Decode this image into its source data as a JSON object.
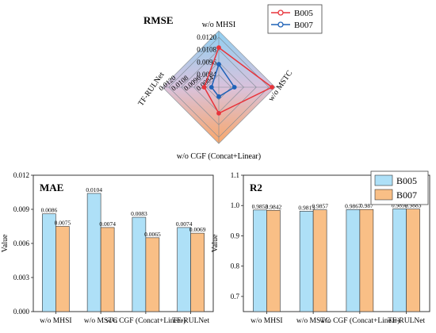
{
  "colors": {
    "b005_line": "#e8343b",
    "b007_line": "#1f62b7",
    "bar_b005": "#aee0f7",
    "bar_b007": "#f9bf86",
    "bar_edge": "#333333"
  },
  "chart_data": [
    {
      "type": "radar",
      "title": "RMSE",
      "axes": [
        "w/o MHSI",
        "w/o MSTC",
        "w/o CGF (Concat+Linear)",
        "TF-RULNet"
      ],
      "tick_labels": [
        "0.0084",
        "0.0096",
        "0.0108",
        "0.0120"
      ],
      "range": [
        0.0072,
        0.0126
      ],
      "legend": "top-right",
      "series": [
        {
          "name": "B005",
          "values": [
            0.011,
            0.0123,
            0.0097,
            0.0086
          ]
        },
        {
          "name": "B007",
          "values": [
            0.0094,
            0.0087,
            0.0081,
            0.0079
          ]
        }
      ]
    },
    {
      "type": "bar",
      "title": "MAE",
      "ylabel": "Value",
      "ylim": [
        0,
        0.012
      ],
      "yticks": [
        "0.000",
        "0.003",
        "0.006",
        "0.009",
        "0.012"
      ],
      "categories": [
        "w/o MHSI",
        "w/o MSTC",
        "w/o CGF (Concat+Linear)",
        "TF-RULNet"
      ],
      "series": [
        {
          "name": "B005",
          "values": [
            0.0086,
            0.0104,
            0.0083,
            0.0074
          ],
          "labels": [
            "0.0086",
            "0.0104",
            "0.0083",
            "0.0074"
          ]
        },
        {
          "name": "B007",
          "values": [
            0.0075,
            0.0074,
            0.0065,
            0.0069
          ],
          "labels": [
            "0.0075",
            "0.0074",
            "0.0065",
            "0.0069"
          ]
        }
      ]
    },
    {
      "type": "bar",
      "title": "R2",
      "ylabel": "Value",
      "ylim": [
        0.65,
        1.1
      ],
      "yticks": [
        "0.7",
        "0.8",
        "0.9",
        "1.0",
        "1.1"
      ],
      "legend": "top-right",
      "categories": [
        "w/o MHSI",
        "w/o MSTC",
        "w/o CGF (Concat+Linear)",
        "TF-RULNet"
      ],
      "series": [
        {
          "name": "B005",
          "values": [
            0.9853,
            0.9813,
            0.9867,
            0.9892
          ],
          "labels": [
            "0.9853",
            "0.9813",
            "0.9867",
            "0.9892"
          ]
        },
        {
          "name": "B007",
          "values": [
            0.9842,
            0.9857,
            0.987,
            0.9883
          ],
          "labels": [
            "0.9842",
            "0.9857",
            "0.987",
            "0.9883"
          ]
        }
      ]
    }
  ]
}
